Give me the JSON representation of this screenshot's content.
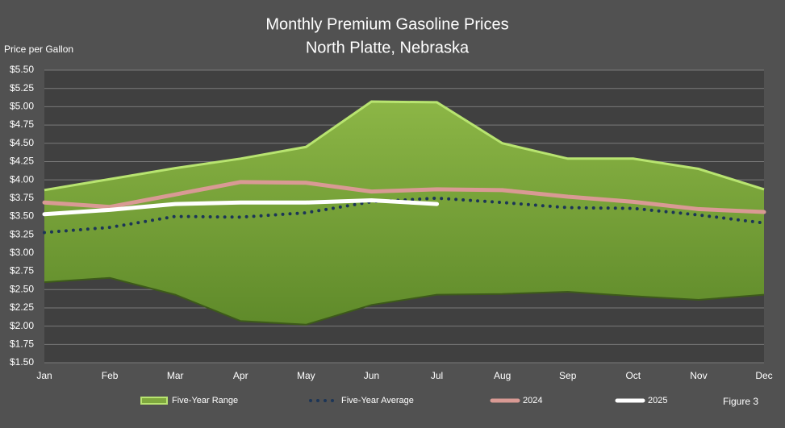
{
  "chart_data": {
    "type": "line",
    "title": "Monthly Premium Gasoline Prices",
    "subtitle": "North Platte, Nebraska",
    "y_label": "Price per Gallon",
    "annotation": "Figure 3",
    "categories": [
      "Jan",
      "Feb",
      "Mar",
      "Apr",
      "May",
      "Jun",
      "Jul",
      "Aug",
      "Sep",
      "Oct",
      "Nov",
      "Dec"
    ],
    "range": {
      "name": "Five-Year Range",
      "color": "#7fa83e",
      "edge_color": "#b8e470",
      "high": [
        3.86,
        4.01,
        4.16,
        4.29,
        4.45,
        5.07,
        5.06,
        4.5,
        4.29,
        4.29,
        4.15,
        3.87
      ],
      "low": [
        2.6,
        2.66,
        2.43,
        2.07,
        2.02,
        2.29,
        2.43,
        2.44,
        2.47,
        2.41,
        2.36,
        2.43
      ]
    },
    "series": [
      {
        "name": "Five-Year Average",
        "color": "#1c3557",
        "style": "dotted",
        "values": [
          3.28,
          3.35,
          3.5,
          3.49,
          3.55,
          3.7,
          3.75,
          3.69,
          3.62,
          3.61,
          3.52,
          3.41
        ]
      },
      {
        "name": "2024",
        "color": "#d99a94",
        "style": "solid",
        "values": [
          3.69,
          3.63,
          3.8,
          3.97,
          3.96,
          3.84,
          3.87,
          3.86,
          3.77,
          3.7,
          3.6,
          3.56
        ]
      },
      {
        "name": "2025",
        "color": "#ffffff",
        "style": "solid",
        "values": [
          3.53,
          3.59,
          3.67,
          3.69,
          3.69,
          3.72,
          3.67,
          null,
          null,
          null,
          null,
          null
        ]
      }
    ],
    "ylim": [
      1.5,
      5.5
    ],
    "yticks": [
      {
        "value": 1.5,
        "label": "$1.50"
      },
      {
        "value": 1.75,
        "label": "$1.75"
      },
      {
        "value": 2.0,
        "label": "$2.00"
      },
      {
        "value": 2.25,
        "label": "$2.25"
      },
      {
        "value": 2.5,
        "label": "$2.50"
      },
      {
        "value": 2.75,
        "label": "$2.75"
      },
      {
        "value": 3.0,
        "label": "$3.00"
      },
      {
        "value": 3.25,
        "label": "$3.25"
      },
      {
        "value": 3.5,
        "label": "$3.50"
      },
      {
        "value": 3.75,
        "label": "$3.75"
      },
      {
        "value": 4.0,
        "label": "$4.00"
      },
      {
        "value": 4.25,
        "label": "$4.25"
      },
      {
        "value": 4.5,
        "label": "$4.50"
      },
      {
        "value": 4.75,
        "label": "$4.75"
      },
      {
        "value": 5.0,
        "label": "$5.00"
      },
      {
        "value": 5.25,
        "label": "$5.25"
      },
      {
        "value": 5.5,
        "label": "$5.50"
      }
    ],
    "grid": true
  }
}
